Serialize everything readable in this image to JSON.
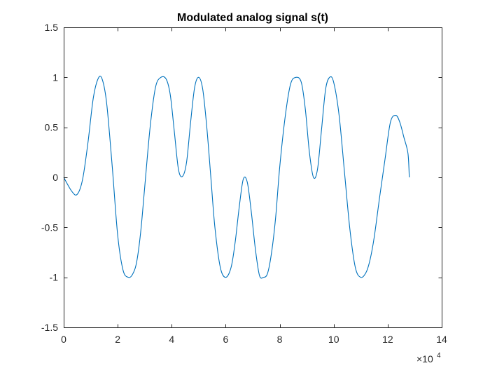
{
  "chart_data": {
    "type": "line",
    "title": "Modulated analog signal s(t)",
    "xlabel": "",
    "ylabel": "",
    "xlim": [
      0,
      140000
    ],
    "ylim": [
      -1.5,
      1.5
    ],
    "x_exponent_label": "×10",
    "x_exponent_power": "4",
    "x_ticks": [
      0,
      20000,
      40000,
      60000,
      80000,
      100000,
      120000,
      140000
    ],
    "x_tick_labels": [
      "0",
      "2",
      "4",
      "6",
      "8",
      "10",
      "12",
      "14"
    ],
    "y_ticks": [
      -1.5,
      -1,
      -0.5,
      0,
      0.5,
      1,
      1.5
    ],
    "y_tick_labels": [
      "-1.5",
      "-1",
      "-0.5",
      "0",
      "0.5",
      "1",
      "1.5"
    ],
    "grid": false,
    "box": true,
    "series": [
      {
        "color": "#0072BD",
        "x": [
          0,
          3000,
          5000,
          7000,
          9000,
          11000,
          13000,
          14500,
          16000,
          18000,
          20000,
          22000,
          24000,
          25500,
          27000,
          28500,
          30000,
          32000,
          34000,
          36000,
          38000,
          39500,
          41000,
          42500,
          44000,
          45500,
          47000,
          48500,
          50000,
          51500,
          53000,
          54500,
          56000,
          58000,
          60000,
          62000,
          63500,
          65000,
          66500,
          68000,
          69500,
          71000,
          72500,
          74000,
          75500,
          77000,
          78500,
          80000,
          82000,
          84000,
          86000,
          88000,
          89500,
          91000,
          92500,
          94000,
          95500,
          97000,
          98500,
          100000,
          102000,
          104000,
          106000,
          108000,
          110000,
          112000,
          113500,
          115000,
          117000,
          119000,
          121000,
          123000,
          124500,
          126000,
          127500,
          128000
        ],
        "y": [
          0,
          -0.14,
          -0.17,
          -0.02,
          0.35,
          0.8,
          1.0,
          0.96,
          0.72,
          0.1,
          -0.58,
          -0.93,
          -1.0,
          -0.97,
          -0.85,
          -0.55,
          -0.1,
          0.5,
          0.9,
          1.0,
          0.98,
          0.82,
          0.45,
          0.08,
          0.01,
          0.15,
          0.55,
          0.9,
          1.0,
          0.88,
          0.5,
          0.0,
          -0.5,
          -0.9,
          -1.0,
          -0.9,
          -0.65,
          -0.3,
          -0.02,
          -0.05,
          -0.35,
          -0.72,
          -0.98,
          -1.0,
          -0.96,
          -0.75,
          -0.4,
          0.1,
          0.6,
          0.93,
          1.0,
          0.95,
          0.68,
          0.25,
          0.0,
          0.08,
          0.48,
          0.88,
          1.0,
          0.95,
          0.62,
          0.05,
          -0.52,
          -0.9,
          -1.0,
          -0.95,
          -0.82,
          -0.6,
          -0.2,
          0.18,
          0.55,
          0.62,
          0.55,
          0.4,
          0.24,
          0.0
        ]
      }
    ]
  }
}
